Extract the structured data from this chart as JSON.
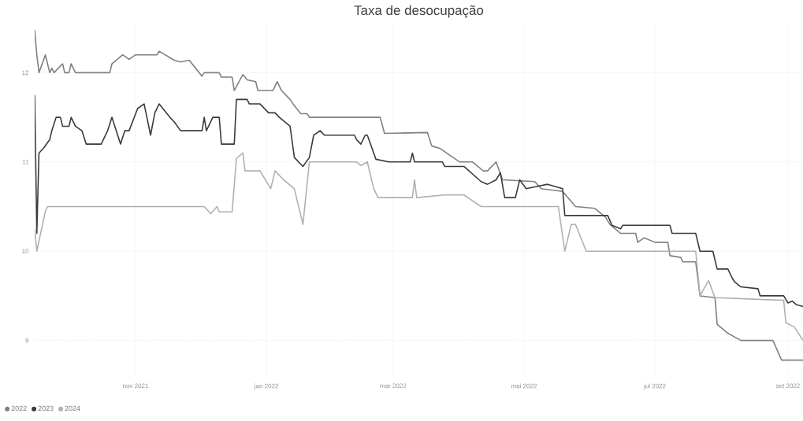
{
  "chart_data": {
    "type": "line",
    "title": "Taxa de desocupação",
    "xlim": [
      "2021-09-15",
      "2022-09-08"
    ],
    "xticks": [
      {
        "value": "2021-11-01",
        "label": "nov 2021"
      },
      {
        "value": "2022-01-01",
        "label": "jan 2022"
      },
      {
        "value": "2022-03-01",
        "label": "mar 2022"
      },
      {
        "value": "2022-05-01",
        "label": "mai 2022"
      },
      {
        "value": "2022-07-01",
        "label": "jul 2022"
      },
      {
        "value": "2022-09-01",
        "label": "set 2022"
      }
    ],
    "ylim": [
      8.6,
      12.55
    ],
    "yticks": [
      9,
      10,
      11,
      12
    ],
    "grid": true,
    "legend": "bottom left",
    "series": [
      {
        "name": "2022",
        "color": "#808080",
        "x": [
          "2021-09-15",
          "2021-09-16",
          "2021-09-17",
          "2021-09-20",
          "2021-09-22",
          "2021-09-23",
          "2021-09-24",
          "2021-09-28",
          "2021-09-29",
          "2021-10-01",
          "2021-10-02",
          "2021-10-04",
          "2021-10-20",
          "2021-10-21",
          "2021-10-26",
          "2021-10-29",
          "2021-11-01",
          "2021-11-11",
          "2021-11-12",
          "2021-11-19",
          "2021-11-22",
          "2021-11-26",
          "2021-12-02",
          "2021-12-03",
          "2021-12-10",
          "2021-12-11",
          "2021-12-16",
          "2021-12-17",
          "2021-12-21",
          "2021-12-23",
          "2021-12-27",
          "2021-12-28",
          "2022-01-04",
          "2022-01-06",
          "2022-01-08",
          "2022-01-12",
          "2022-01-14",
          "2022-01-17",
          "2022-01-20",
          "2022-01-21",
          "2022-02-23",
          "2022-02-25",
          "2022-03-17",
          "2022-03-19",
          "2022-03-23",
          "2022-04-01",
          "2022-04-07",
          "2022-04-12",
          "2022-04-14",
          "2022-04-18",
          "2022-04-21",
          "2022-05-06",
          "2022-05-09",
          "2022-05-19",
          "2022-05-25",
          "2022-06-03",
          "2022-06-08",
          "2022-06-10",
          "2022-06-15",
          "2022-06-22",
          "2022-06-23",
          "2022-06-26",
          "2022-07-01",
          "2022-07-07",
          "2022-07-08",
          "2022-07-13",
          "2022-07-14",
          "2022-07-20",
          "2022-07-22",
          "2022-07-29",
          "2022-07-30",
          "2022-08-04",
          "2022-08-10",
          "2022-08-25",
          "2022-08-29",
          "2022-09-08"
        ],
        "values": [
          12.48,
          12.2,
          12.0,
          12.2,
          12.0,
          12.05,
          12.0,
          12.1,
          12.0,
          12.0,
          12.1,
          12.0,
          12.0,
          12.1,
          12.2,
          12.15,
          12.2,
          12.2,
          12.24,
          12.14,
          12.12,
          12.14,
          11.96,
          12.0,
          12.0,
          11.95,
          11.95,
          11.8,
          11.98,
          11.92,
          11.9,
          11.8,
          11.8,
          11.9,
          11.8,
          11.7,
          11.63,
          11.54,
          11.54,
          11.5,
          11.5,
          11.32,
          11.33,
          11.18,
          11.15,
          11.0,
          11.0,
          10.9,
          10.9,
          11.0,
          10.8,
          10.78,
          10.7,
          10.67,
          10.5,
          10.48,
          10.38,
          10.3,
          10.2,
          10.2,
          10.1,
          10.15,
          10.1,
          10.1,
          9.95,
          9.93,
          9.88,
          9.88,
          9.5,
          9.48,
          9.18,
          9.08,
          9.0,
          9.0,
          8.78,
          8.78
        ]
      },
      {
        "name": "2023",
        "color": "#3a3a3a",
        "x": [
          "2021-09-15",
          "2021-09-16",
          "2021-09-17",
          "2021-09-19",
          "2021-09-22",
          "2021-09-23",
          "2021-09-25",
          "2021-09-27",
          "2021-09-28",
          "2021-10-01",
          "2021-10-02",
          "2021-10-04",
          "2021-10-07",
          "2021-10-09",
          "2021-10-16",
          "2021-10-19",
          "2021-10-21",
          "2021-10-25",
          "2021-10-27",
          "2021-10-29",
          "2021-11-02",
          "2021-11-05",
          "2021-11-08",
          "2021-11-10",
          "2021-11-12",
          "2021-11-17",
          "2021-11-19",
          "2021-11-22",
          "2021-12-02",
          "2021-12-03",
          "2021-12-04",
          "2021-12-07",
          "2021-12-10",
          "2021-12-11",
          "2021-12-17",
          "2021-12-18",
          "2021-12-23",
          "2021-12-24",
          "2021-12-29",
          "2022-01-02",
          "2022-01-05",
          "2022-01-07",
          "2022-01-12",
          "2022-01-14",
          "2022-01-18",
          "2022-01-21",
          "2022-01-23",
          "2022-01-26",
          "2022-01-28",
          "2022-02-11",
          "2022-02-12",
          "2022-02-14",
          "2022-02-16",
          "2022-02-17",
          "2022-02-21",
          "2022-02-27",
          "2022-03-09",
          "2022-03-10",
          "2022-03-11",
          "2022-03-24",
          "2022-03-25",
          "2022-04-03",
          "2022-04-11",
          "2022-04-14",
          "2022-04-18",
          "2022-04-20",
          "2022-04-22",
          "2022-04-27",
          "2022-04-29",
          "2022-05-02",
          "2022-05-06",
          "2022-05-12",
          "2022-05-19",
          "2022-05-20",
          "2022-06-09",
          "2022-06-11",
          "2022-06-15",
          "2022-06-16",
          "2022-07-08",
          "2022-07-09",
          "2022-07-20",
          "2022-07-22",
          "2022-07-28",
          "2022-07-30",
          "2022-08-04",
          "2022-08-06",
          "2022-08-07",
          "2022-08-10",
          "2022-08-18",
          "2022-08-19",
          "2022-08-30",
          "2022-09-01",
          "2022-09-03",
          "2022-09-05",
          "2022-09-08"
        ],
        "values": [
          11.75,
          10.2,
          11.1,
          11.15,
          11.25,
          11.35,
          11.5,
          11.5,
          11.4,
          11.4,
          11.5,
          11.4,
          11.35,
          11.2,
          11.2,
          11.35,
          11.5,
          11.2,
          11.35,
          11.35,
          11.6,
          11.65,
          11.3,
          11.55,
          11.65,
          11.5,
          11.45,
          11.35,
          11.35,
          11.5,
          11.35,
          11.5,
          11.5,
          11.2,
          11.2,
          11.7,
          11.7,
          11.65,
          11.65,
          11.55,
          11.55,
          11.5,
          11.4,
          11.05,
          10.95,
          11.05,
          11.3,
          11.35,
          11.3,
          11.3,
          11.25,
          11.2,
          11.3,
          11.3,
          11.03,
          11.0,
          11.0,
          11.1,
          11.0,
          11.0,
          10.95,
          10.95,
          10.78,
          10.75,
          10.8,
          10.88,
          10.6,
          10.6,
          10.8,
          10.7,
          10.72,
          10.75,
          10.7,
          10.4,
          10.4,
          10.29,
          10.25,
          10.29,
          10.29,
          10.2,
          10.2,
          10.0,
          10.0,
          9.8,
          9.8,
          9.7,
          9.66,
          9.6,
          9.58,
          9.5,
          9.5,
          9.42,
          9.44,
          9.4,
          9.38
        ]
      },
      {
        "name": "2024",
        "color": "#b0b0b0",
        "x": [
          "2021-09-15",
          "2021-09-16",
          "2021-09-20",
          "2021-09-21",
          "2021-12-03",
          "2021-12-06",
          "2021-12-09",
          "2021-12-10",
          "2021-12-16",
          "2021-12-18",
          "2021-12-21",
          "2021-12-22",
          "2021-12-29",
          "2022-01-03",
          "2022-01-05",
          "2022-01-09",
          "2022-01-14",
          "2022-01-18",
          "2022-01-21",
          "2022-02-12",
          "2022-02-14",
          "2022-02-17",
          "2022-02-20",
          "2022-02-22",
          "2022-03-10",
          "2022-03-11",
          "2022-03-12",
          "2022-03-25",
          "2022-04-03",
          "2022-04-11",
          "2022-05-17",
          "2022-05-20",
          "2022-05-23",
          "2022-05-25",
          "2022-05-30",
          "2022-07-20",
          "2022-07-22",
          "2022-07-26",
          "2022-07-29",
          "2022-08-30",
          "2022-08-31",
          "2022-09-04",
          "2022-09-08"
        ],
        "values": [
          10.25,
          10.0,
          10.45,
          10.5,
          10.5,
          10.42,
          10.5,
          10.44,
          10.44,
          11.04,
          11.1,
          10.9,
          10.9,
          10.7,
          10.9,
          10.8,
          10.7,
          10.3,
          11.0,
          11.0,
          10.96,
          11.0,
          10.7,
          10.6,
          10.6,
          10.8,
          10.6,
          10.63,
          10.63,
          10.5,
          10.5,
          10.0,
          10.3,
          10.3,
          10.0,
          10.0,
          9.5,
          9.67,
          9.48,
          9.45,
          9.2,
          9.15,
          9.0
        ]
      }
    ]
  }
}
